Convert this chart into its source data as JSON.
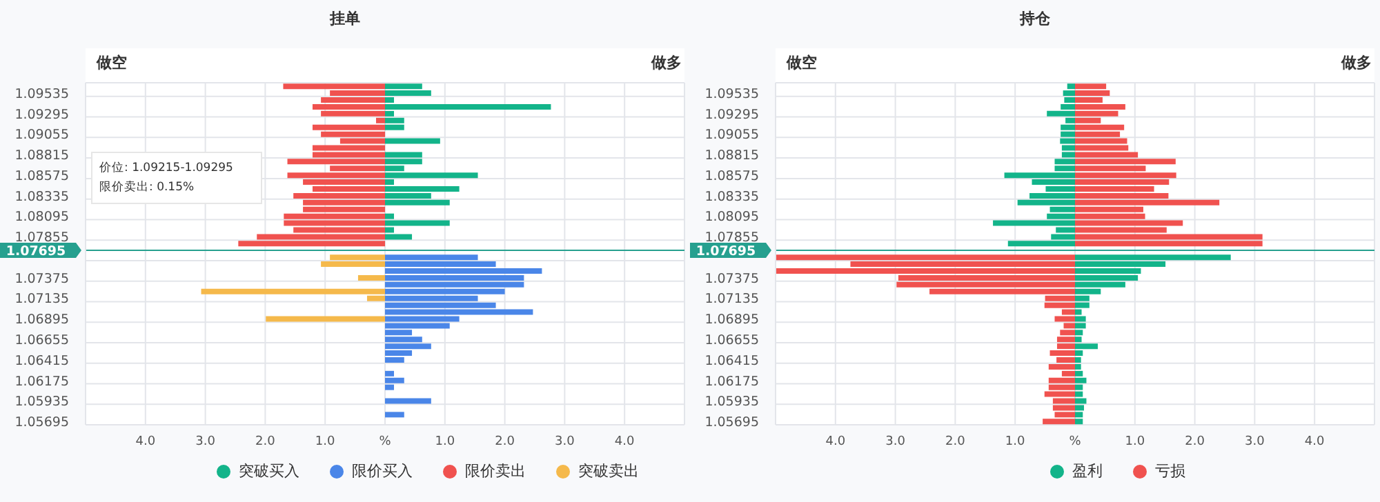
{
  "chart_data": [
    {
      "type": "bar",
      "title": "挂单",
      "orientation": "horizontal",
      "stacked": true,
      "categories": [
        null,
        "1.09535",
        null,
        null,
        "1.09295",
        null,
        null,
        "1.09055",
        null,
        null,
        "1.08815",
        null,
        null,
        "1.08575",
        null,
        null,
        "1.08335",
        null,
        null,
        "1.08095",
        null,
        null,
        "1.07855",
        null,
        "1.07695",
        null,
        null,
        null,
        "1.07375",
        null,
        null,
        "1.07135",
        null,
        null,
        "1.06895",
        null,
        null,
        "1.06655",
        null,
        null,
        "1.06415",
        null,
        null,
        "1.06175",
        null,
        null,
        "1.05935",
        null,
        null,
        "1.05695"
      ],
      "series": [
        {
          "name": "突破买入",
          "color": "#13b48a",
          "values": [
            0.62,
            0.77,
            0.15,
            2.77,
            0.15,
            0.32,
            0.32,
            null,
            0.92,
            null,
            0.62,
            0.62,
            0.32,
            1.55,
            0.15,
            1.24,
            0.77,
            1.08,
            null,
            0.15,
            1.08,
            0.15,
            0.45,
            null,
            null,
            null,
            null,
            null,
            null,
            null,
            null,
            null,
            null,
            null,
            null,
            null,
            null,
            null,
            null,
            null,
            null,
            null,
            null,
            null,
            null,
            null,
            null,
            null,
            null,
            null
          ]
        },
        {
          "name": "限价买入",
          "color": "#4a86e8",
          "values": [
            null,
            null,
            null,
            null,
            null,
            null,
            null,
            null,
            null,
            null,
            null,
            null,
            null,
            null,
            null,
            null,
            null,
            null,
            null,
            null,
            null,
            null,
            null,
            null,
            null,
            1.55,
            1.85,
            2.62,
            2.32,
            2.32,
            2.0,
            1.55,
            1.85,
            2.47,
            1.24,
            1.08,
            0.45,
            0.62,
            0.77,
            0.45,
            0.32,
            null,
            0.15,
            0.32,
            0.15,
            null,
            0.77,
            null,
            0.32,
            null
          ]
        },
        {
          "name": "限价卖出",
          "color": "#f0524f",
          "values": [
            -1.7,
            -0.92,
            -1.07,
            -1.21,
            -1.07,
            -0.15,
            -1.21,
            -1.07,
            -0.75,
            -1.21,
            -1.21,
            -1.63,
            -0.92,
            -1.63,
            -1.37,
            -1.21,
            -1.53,
            -1.37,
            -1.37,
            -1.69,
            -1.69,
            -1.53,
            -2.14,
            -2.45,
            null,
            null,
            null,
            null,
            null,
            null,
            null,
            null,
            null,
            null,
            null,
            null,
            null,
            null,
            null,
            null,
            null,
            null,
            null,
            null,
            null,
            null,
            null,
            null,
            null,
            null
          ]
        },
        {
          "name": "突破卖出",
          "color": "#f5b94b",
          "values": [
            null,
            null,
            null,
            null,
            null,
            null,
            null,
            null,
            null,
            null,
            null,
            null,
            null,
            null,
            null,
            null,
            null,
            null,
            null,
            null,
            null,
            null,
            null,
            null,
            null,
            -0.92,
            -1.07,
            null,
            -0.45,
            null,
            -3.07,
            -0.3,
            null,
            null,
            -1.99,
            null,
            null,
            null,
            null,
            null,
            null,
            null,
            null,
            null,
            null,
            null,
            null,
            null,
            null,
            null
          ]
        }
      ],
      "xlim": [
        -5,
        5
      ],
      "xticks": [
        {
          "value": -4,
          "label": "4.0"
        },
        {
          "value": -3,
          "label": "3.0"
        },
        {
          "value": -2,
          "label": "2.0"
        },
        {
          "value": -1,
          "label": "1.0"
        },
        {
          "value": 0,
          "label": "%"
        },
        {
          "value": 1,
          "label": "1.0"
        },
        {
          "value": 2,
          "label": "2.0"
        },
        {
          "value": 3,
          "label": "3.0"
        },
        {
          "value": 4,
          "label": "4.0"
        }
      ],
      "ref_lines": [
        {
          "axis": "y",
          "value": "1.07695",
          "color": "#26a08f"
        }
      ],
      "annotations": [
        "做空",
        "做多",
        "价位: 1.09215-1.09295",
        "限价卖出: 0.15%"
      ],
      "grid": true,
      "legend": "bottom"
    },
    {
      "type": "bar",
      "title": "持仓",
      "orientation": "horizontal",
      "stacked": true,
      "categories": [
        null,
        "1.09535",
        null,
        null,
        "1.09295",
        null,
        null,
        "1.09055",
        null,
        null,
        "1.08815",
        null,
        null,
        "1.08575",
        null,
        null,
        "1.08335",
        null,
        null,
        "1.08095",
        null,
        null,
        "1.07855",
        null,
        "1.07695",
        null,
        null,
        null,
        "1.07375",
        null,
        null,
        "1.07135",
        null,
        null,
        "1.06895",
        null,
        null,
        "1.06655",
        null,
        null,
        "1.06415",
        null,
        null,
        "1.06175",
        null,
        null,
        "1.05935",
        null,
        null,
        "1.05695"
      ],
      "series": [
        {
          "name": "盈利",
          "color": "#13b48a",
          "values": [
            -0.13,
            -0.2,
            -0.18,
            -0.24,
            -0.47,
            -0.16,
            -0.24,
            -0.24,
            -0.25,
            -0.22,
            -0.22,
            -0.34,
            -0.34,
            -1.18,
            -0.72,
            -0.49,
            -0.76,
            -0.96,
            -0.42,
            -0.47,
            -1.37,
            -0.32,
            -0.4,
            -1.12,
            null,
            2.6,
            1.51,
            1.1,
            1.05,
            0.84,
            0.43,
            0.24,
            0.24,
            0.11,
            0.18,
            0.18,
            0.13,
            0.11,
            0.38,
            0.13,
            0.1,
            0.1,
            0.13,
            0.19,
            0.13,
            0.13,
            0.19,
            0.15,
            0.13,
            0.13
          ]
        },
        {
          "name": "亏损",
          "color": "#f0524f",
          "values": [
            0.52,
            0.58,
            0.46,
            0.84,
            0.72,
            0.43,
            0.82,
            0.75,
            0.87,
            0.89,
            1.05,
            1.68,
            1.18,
            1.69,
            1.57,
            1.32,
            1.56,
            2.41,
            1.14,
            1.17,
            1.8,
            1.53,
            3.13,
            3.13,
            null,
            -5,
            -3.75,
            -5,
            -2.95,
            -2.98,
            -2.43,
            -0.5,
            -0.51,
            -0.22,
            -0.34,
            -0.19,
            -0.25,
            -0.3,
            -0.3,
            -0.42,
            -0.31,
            -0.44,
            -0.22,
            -0.44,
            -0.44,
            -0.51,
            -0.37,
            -0.37,
            -0.34,
            -0.54
          ]
        }
      ],
      "xlim": [
        -5,
        5
      ],
      "xticks": [
        {
          "value": -4,
          "label": "4.0"
        },
        {
          "value": -3,
          "label": "3.0"
        },
        {
          "value": -2,
          "label": "2.0"
        },
        {
          "value": -1,
          "label": "1.0"
        },
        {
          "value": 0,
          "label": "%"
        },
        {
          "value": 1,
          "label": "1.0"
        },
        {
          "value": 2,
          "label": "2.0"
        },
        {
          "value": 3,
          "label": "3.0"
        },
        {
          "value": 4,
          "label": "4.0"
        }
      ],
      "ref_lines": [
        {
          "axis": "y",
          "value": "1.07695",
          "color": "#26a08f"
        }
      ],
      "annotations": [
        "做空",
        "做多"
      ],
      "grid": true,
      "legend": "bottom"
    }
  ]
}
